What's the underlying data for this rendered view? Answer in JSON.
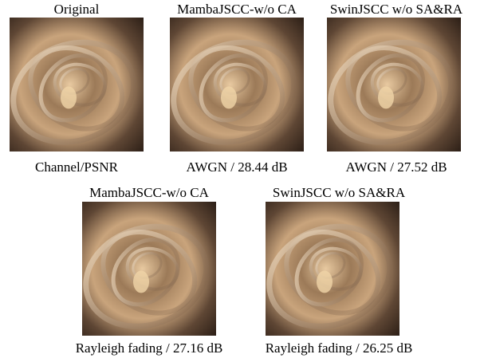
{
  "panels": [
    {
      "title": "Original",
      "caption": "Channel/PSNR"
    },
    {
      "title": "MambaJSCC-w/o CA",
      "caption": "AWGN / 28.44 dB"
    },
    {
      "title": "SwinJSCC w/o SA&RA",
      "caption": "AWGN / 27.52 dB"
    },
    {
      "title": "MambaJSCC-w/o CA",
      "caption": "Rayleigh fading / 27.16 dB"
    },
    {
      "title": "SwinJSCC w/o SA&RA",
      "caption": "Rayleigh fading / 26.25 dB"
    }
  ]
}
